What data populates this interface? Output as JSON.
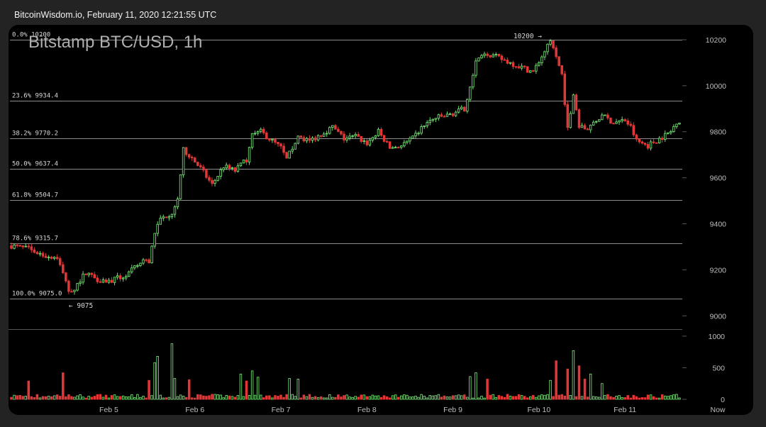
{
  "header": {
    "caption": "BitcoinWisdom.io, February 11, 2020 12:21:55 UTC"
  },
  "colors": {
    "up": "#6fdc6f",
    "down": "#e33636",
    "grid": "#8c8c8c",
    "text": "#d8d8d8",
    "panel": "#000000"
  },
  "chart_data": {
    "type": "candlestick",
    "title": "Bitstamp BTC/USD, 1h",
    "price_axis": {
      "ticks": [
        9000,
        9200,
        9400,
        9600,
        9800,
        10000,
        10200
      ],
      "ylim": [
        8970,
        10240
      ]
    },
    "volume_axis": {
      "ticks": [
        0,
        500,
        1000
      ],
      "ylim": [
        0,
        1100
      ]
    },
    "x_ticks": [
      "Feb 5",
      "Feb 6",
      "Feb 7",
      "Feb 8",
      "Feb 9",
      "Feb 10",
      "Feb 11",
      "Now"
    ],
    "fib_levels": [
      {
        "label": "0.0% 10200",
        "value": 10200
      },
      {
        "label": "23.6% 9934.4",
        "value": 9934.4
      },
      {
        "label": "38.2% 9770.2",
        "value": 9770.2
      },
      {
        "label": "50.0% 9637.4",
        "value": 9637.4
      },
      {
        "label": "61.8% 9504.7",
        "value": 9504.7
      },
      {
        "label": "78.6% 9315.7",
        "value": 9315.7
      },
      {
        "label": "100.0% 9075.0",
        "value": 9075.0
      }
    ],
    "markers": [
      {
        "label": "10200 →",
        "value": 10200,
        "candle": 187
      },
      {
        "label": "← 9075",
        "value": 9075,
        "candle": 21
      }
    ],
    "close_path": [
      [
        0,
        9305
      ],
      [
        6,
        9290
      ],
      [
        12,
        9260
      ],
      [
        16,
        9255
      ],
      [
        20,
        9110
      ],
      [
        22,
        9120
      ],
      [
        26,
        9190
      ],
      [
        30,
        9160
      ],
      [
        34,
        9150
      ],
      [
        40,
        9175
      ],
      [
        46,
        9240
      ],
      [
        48,
        9235
      ],
      [
        50,
        9360
      ],
      [
        52,
        9420
      ],
      [
        56,
        9450
      ],
      [
        58,
        9510
      ],
      [
        60,
        9720
      ],
      [
        62,
        9700
      ],
      [
        66,
        9640
      ],
      [
        70,
        9570
      ],
      [
        74,
        9650
      ],
      [
        78,
        9630
      ],
      [
        82,
        9680
      ],
      [
        84,
        9800
      ],
      [
        86,
        9810
      ],
      [
        90,
        9770
      ],
      [
        94,
        9730
      ],
      [
        96,
        9680
      ],
      [
        100,
        9780
      ],
      [
        104,
        9760
      ],
      [
        108,
        9790
      ],
      [
        112,
        9820
      ],
      [
        116,
        9770
      ],
      [
        120,
        9780
      ],
      [
        124,
        9750
      ],
      [
        128,
        9800
      ],
      [
        132,
        9730
      ],
      [
        136,
        9740
      ],
      [
        140,
        9770
      ],
      [
        144,
        9830
      ],
      [
        148,
        9860
      ],
      [
        152,
        9870
      ],
      [
        156,
        9890
      ],
      [
        158,
        9900
      ],
      [
        160,
        10000
      ],
      [
        162,
        10100
      ],
      [
        166,
        10140
      ],
      [
        170,
        10120
      ],
      [
        174,
        10100
      ],
      [
        178,
        10080
      ],
      [
        182,
        10060
      ],
      [
        186,
        10150
      ],
      [
        188,
        10190
      ],
      [
        192,
        10050
      ],
      [
        194,
        9810
      ],
      [
        196,
        9970
      ],
      [
        198,
        9830
      ],
      [
        200,
        9810
      ],
      [
        204,
        9840
      ],
      [
        206,
        9870
      ],
      [
        210,
        9840
      ],
      [
        214,
        9850
      ],
      [
        216,
        9820
      ],
      [
        218,
        9760
      ],
      [
        222,
        9740
      ],
      [
        226,
        9770
      ],
      [
        230,
        9800
      ],
      [
        232,
        9845
      ]
    ],
    "volume_spikes": [
      [
        6,
        290
      ],
      [
        18,
        420
      ],
      [
        48,
        300
      ],
      [
        50,
        580
      ],
      [
        51,
        680
      ],
      [
        56,
        880
      ],
      [
        57,
        330
      ],
      [
        62,
        310
      ],
      [
        80,
        400
      ],
      [
        82,
        290
      ],
      [
        84,
        450
      ],
      [
        86,
        350
      ],
      [
        97,
        330
      ],
      [
        100,
        320
      ],
      [
        160,
        360
      ],
      [
        162,
        420
      ],
      [
        166,
        320
      ],
      [
        188,
        300
      ],
      [
        190,
        610
      ],
      [
        194,
        480
      ],
      [
        196,
        770
      ],
      [
        198,
        530
      ],
      [
        200,
        320
      ],
      [
        202,
        400
      ],
      [
        206,
        250
      ]
    ]
  }
}
